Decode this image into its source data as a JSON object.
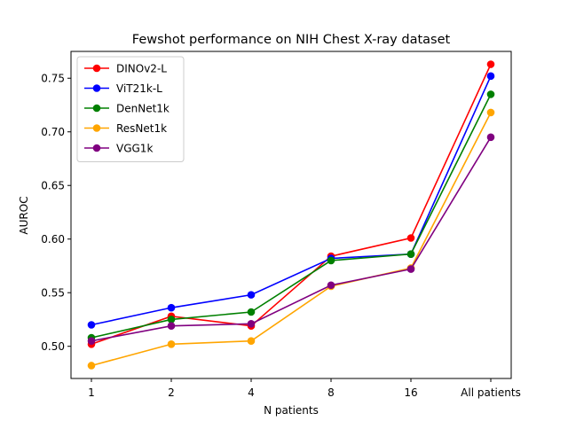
{
  "chart_data": {
    "type": "line",
    "title": "Fewshot performance on NIH Chest X-ray dataset",
    "xlabel": "N patients",
    "ylabel": "AUROC",
    "categories": [
      "1",
      "2",
      "4",
      "8",
      "16",
      "All patients"
    ],
    "ylim": [
      0.47,
      0.775
    ],
    "yticks": [
      0.5,
      0.55,
      0.6,
      0.65,
      0.7,
      0.75
    ],
    "ytick_labels": [
      "0.50",
      "0.55",
      "0.60",
      "0.65",
      "0.70",
      "0.75"
    ],
    "grid": false,
    "legend_position": "upper-left",
    "series": [
      {
        "name": "DINOv2-L",
        "color": "#ff0000",
        "values": [
          0.502,
          0.528,
          0.519,
          0.584,
          0.601,
          0.763
        ]
      },
      {
        "name": "ViT21k-L",
        "color": "#0000ff",
        "values": [
          0.52,
          0.536,
          0.548,
          0.582,
          0.586,
          0.752
        ]
      },
      {
        "name": "DenNet1k",
        "color": "#008000",
        "values": [
          0.508,
          0.525,
          0.532,
          0.58,
          0.586,
          0.735
        ]
      },
      {
        "name": "ResNet1k",
        "color": "#ffa500",
        "values": [
          0.482,
          0.502,
          0.505,
          0.556,
          0.573,
          0.718
        ]
      },
      {
        "name": "VGG1k",
        "color": "#800080",
        "values": [
          0.505,
          0.519,
          0.521,
          0.557,
          0.572,
          0.695
        ]
      }
    ]
  }
}
